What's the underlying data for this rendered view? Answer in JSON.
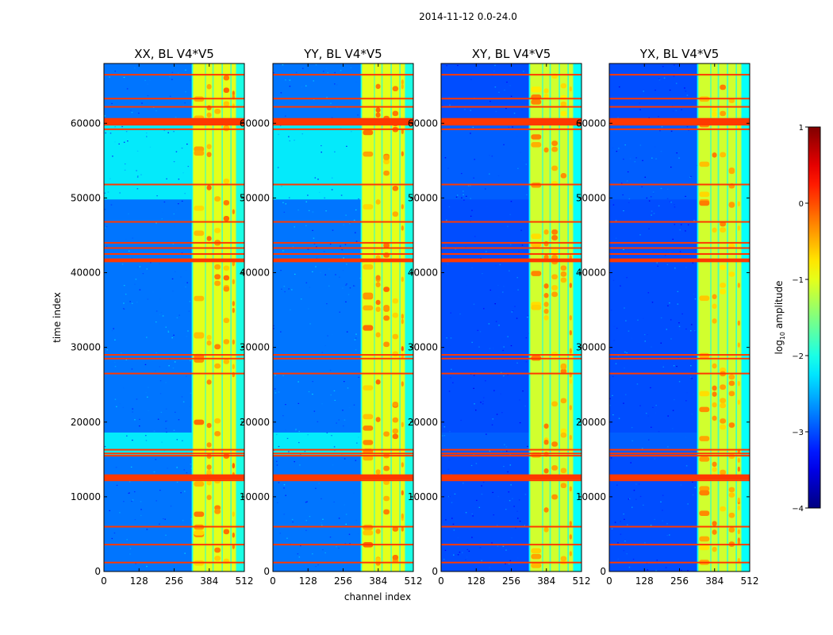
{
  "suptitle": "2014-11-12 0.0-24.0",
  "chart_data": {
    "type": "heatmap",
    "shared": {
      "xlabel": "channel index",
      "ylabel": "time index",
      "xlim": [
        0,
        512
      ],
      "ylim": [
        0,
        68000
      ],
      "xticks": [
        0,
        128,
        256,
        384,
        512
      ],
      "yticks": [
        0,
        10000,
        20000,
        30000,
        40000,
        50000,
        60000
      ],
      "colorbar": {
        "label_main": "log",
        "label_sub": "10",
        "label_tail": " amplitude",
        "range": [
          -4,
          1
        ],
        "ticks": [
          -4,
          -3,
          -2,
          -1,
          0,
          1
        ],
        "tick_labels": [
          "−4",
          "−3",
          "−2",
          "−1",
          "0",
          "1"
        ],
        "colormap": "jet"
      },
      "signal_channel_range": [
        320,
        512
      ],
      "signal_bands": [
        {
          "start": 325,
          "end": 368
        },
        {
          "start": 372,
          "end": 395
        },
        {
          "start": 400,
          "end": 428
        },
        {
          "start": 433,
          "end": 460
        },
        {
          "start": 465,
          "end": 480
        }
      ],
      "flagged_time_rows": [
        1200,
        3600,
        6000,
        12200,
        12500,
        12800,
        15500,
        15800,
        16300,
        26500,
        28500,
        29000,
        41600,
        42500,
        43300,
        44000,
        46800,
        51800,
        59200,
        60300,
        62200,
        63300,
        66500
      ]
    },
    "panels": [
      {
        "title": "XX, BL V4*V5",
        "polarization": "XX",
        "background_level": -2.8,
        "band_level": -1.0,
        "elevated_level": -2.1
      },
      {
        "title": "YY, BL V4*V5",
        "polarization": "YY",
        "background_level": -2.8,
        "band_level": -1.0,
        "elevated_level": -2.1
      },
      {
        "title": "XY, BL V4*V5",
        "polarization": "XY",
        "background_level": -3.0,
        "band_level": -1.1,
        "elevated_level": -2.9
      },
      {
        "title": "YX, BL V4*V5",
        "polarization": "YX",
        "background_level": -3.0,
        "band_level": -1.1,
        "elevated_level": -2.9
      }
    ]
  }
}
